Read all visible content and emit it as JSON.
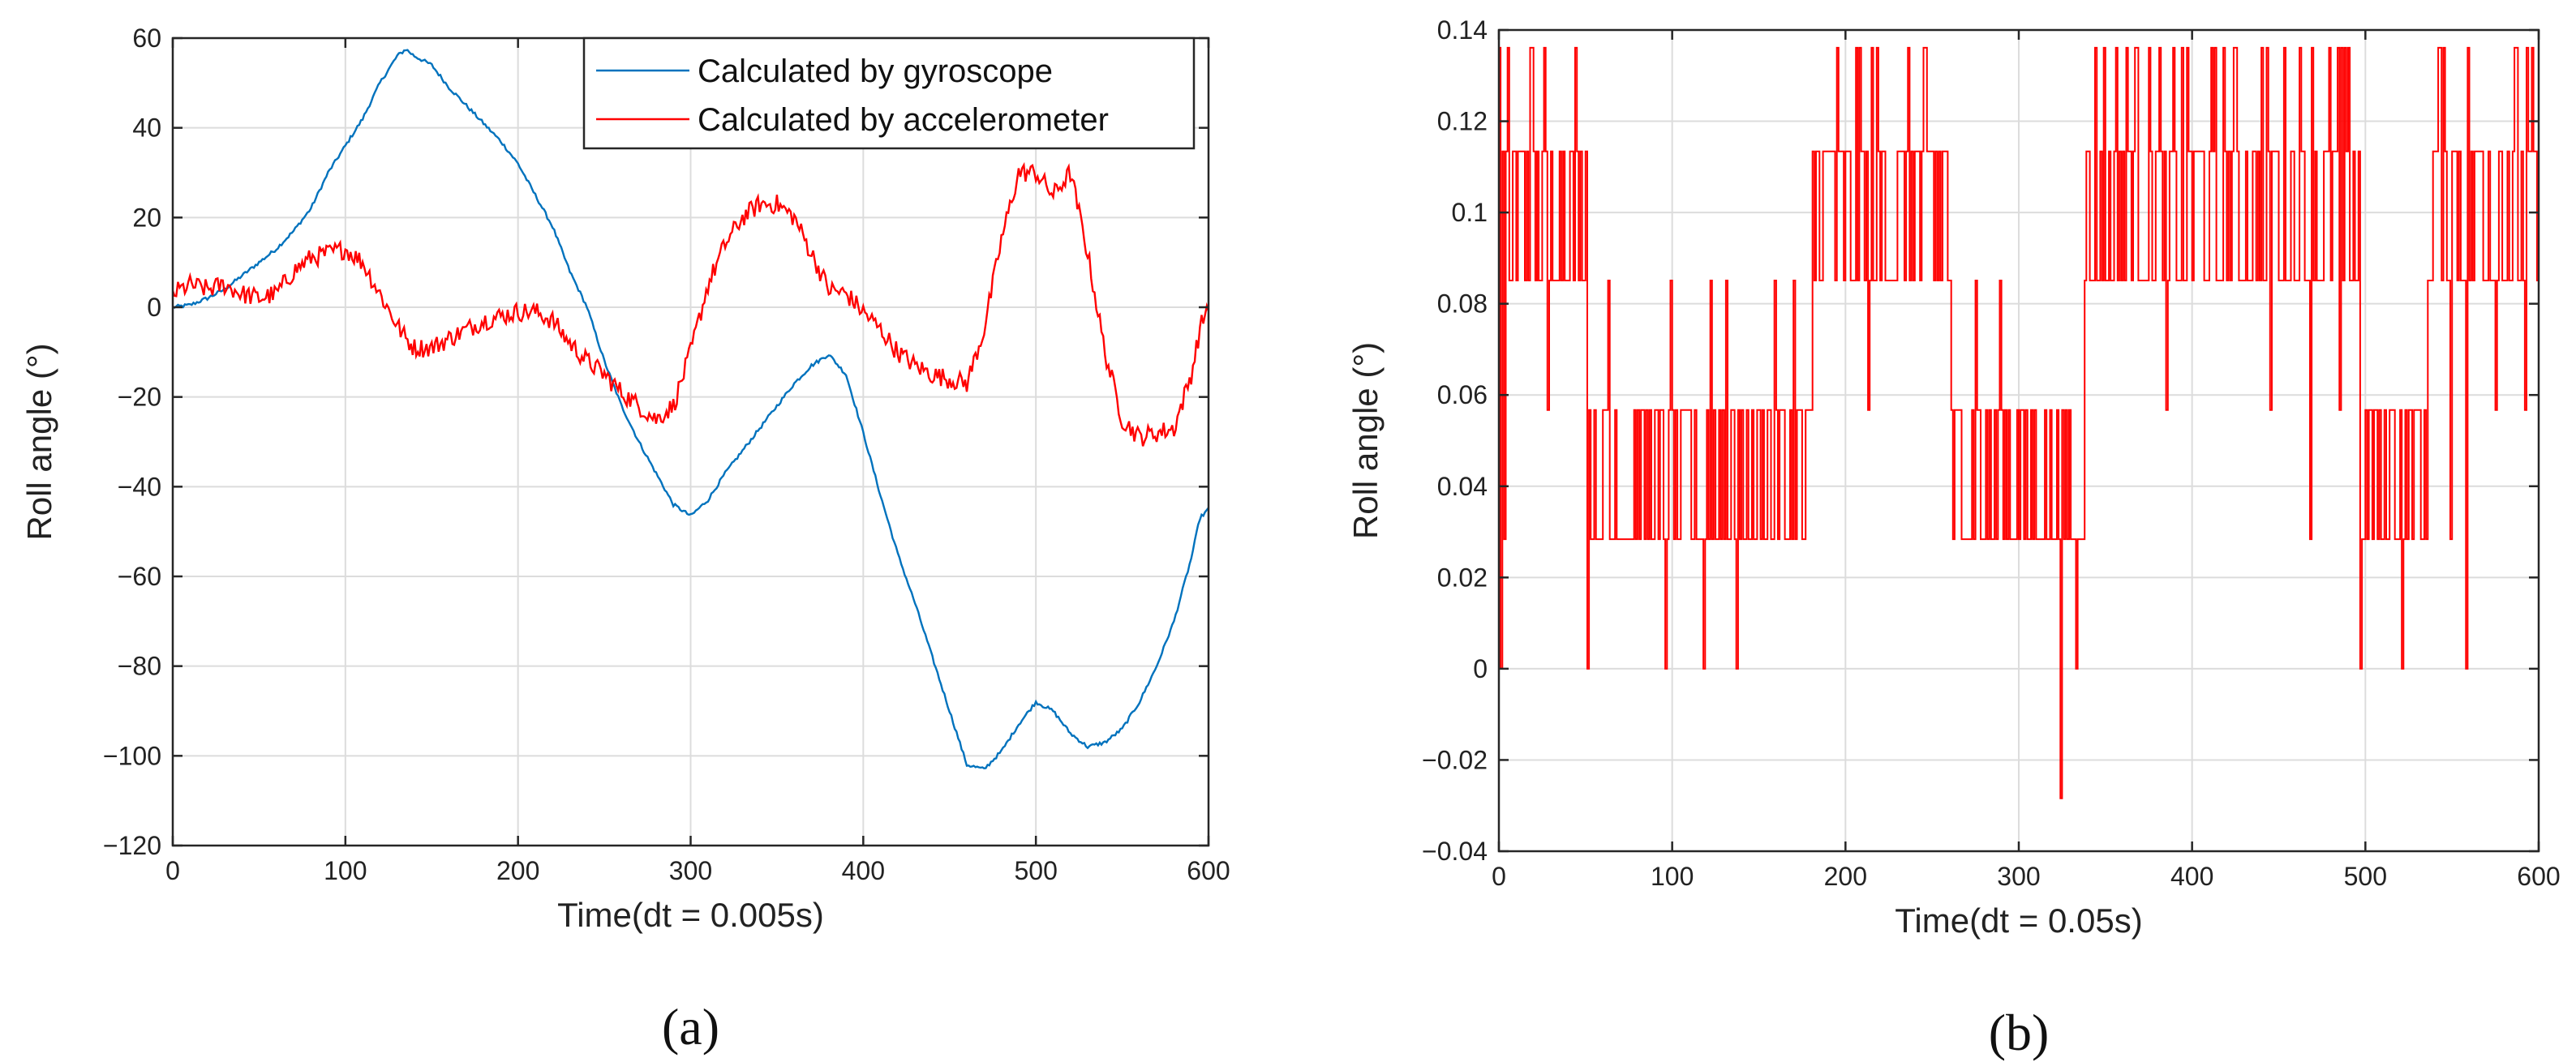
{
  "chart_data": [
    {
      "type": "line",
      "panel_label": "(a)",
      "xlabel": "Time(dt = 0.005s)",
      "ylabel": "Roll angle (°)",
      "xlim": [
        0,
        600
      ],
      "ylim": [
        -120,
        60
      ],
      "xticks": [
        0,
        100,
        200,
        300,
        400,
        500,
        600
      ],
      "yticks": [
        60,
        40,
        20,
        0,
        -20,
        -40,
        -60,
        -80,
        -100,
        -120
      ],
      "ytick_labels": [
        "60",
        "40",
        "20",
        "0",
        "−20",
        "−40",
        "−60",
        "−80",
        "−100",
        "−120"
      ],
      "grid": true,
      "legend": {
        "placement": "top-right"
      },
      "series": [
        {
          "name": "Calculated by gyroscope",
          "color": "#0072BD",
          "noise": 0.4,
          "x": [
            0,
            10,
            20,
            30,
            40,
            50,
            60,
            70,
            80,
            90,
            100,
            110,
            120,
            130,
            135,
            140,
            150,
            160,
            170,
            180,
            190,
            200,
            210,
            220,
            230,
            240,
            250,
            260,
            270,
            280,
            290,
            300,
            310,
            320,
            330,
            340,
            350,
            360,
            370,
            380,
            390,
            400,
            410,
            420,
            430,
            440,
            450,
            460,
            470,
            480,
            490,
            500,
            510,
            520,
            530,
            540,
            550,
            560,
            570,
            580,
            590,
            595,
            600
          ],
          "y": [
            0,
            0.5,
            2,
            4,
            7,
            10,
            13,
            17,
            22,
            30,
            36,
            42,
            50,
            56,
            57.5,
            56,
            54,
            49,
            45,
            41,
            37,
            32,
            25,
            18,
            8,
            0,
            -12,
            -22,
            -30,
            -37,
            -44,
            -46.5,
            -43,
            -37,
            -32,
            -27,
            -22,
            -17,
            -13,
            -10.5,
            -15,
            -28,
            -42,
            -55,
            -66,
            -78,
            -90,
            -102,
            -103,
            -99,
            -93,
            -88,
            -90,
            -95,
            -98,
            -97,
            -94,
            -88,
            -80,
            -70,
            -56,
            -47,
            -45
          ]
        },
        {
          "name": "Calculated by accelerometer",
          "color": "#FF0000",
          "noise": 2.2,
          "x": [
            0,
            10,
            20,
            30,
            40,
            50,
            60,
            70,
            80,
            90,
            100,
            110,
            120,
            130,
            135,
            140,
            150,
            160,
            170,
            180,
            190,
            200,
            210,
            220,
            230,
            240,
            250,
            260,
            270,
            280,
            290,
            300,
            310,
            320,
            330,
            340,
            350,
            360,
            370,
            380,
            390,
            400,
            410,
            420,
            430,
            440,
            450,
            460,
            470,
            480,
            490,
            500,
            510,
            520,
            530,
            540,
            550,
            560,
            570,
            580,
            590,
            595,
            600
          ],
          "y": [
            3,
            5,
            4,
            5,
            3,
            2,
            3,
            8,
            11,
            12,
            13,
            10,
            3,
            -4,
            -7,
            -9,
            -9,
            -7,
            -5,
            -3,
            -2,
            -1,
            -1,
            -3,
            -8,
            -12,
            -15,
            -19,
            -22,
            -25,
            -22,
            -10,
            5,
            14,
            20,
            23,
            23,
            20,
            12,
            4,
            3,
            -1,
            -5,
            -10,
            -13,
            -15,
            -16,
            -17,
            -5,
            15,
            30,
            30,
            25,
            30,
            12,
            -10,
            -25,
            -29,
            -28,
            -27,
            -15,
            -5,
            1
          ]
        }
      ]
    },
    {
      "type": "line",
      "panel_label": "(b)",
      "xlabel": "Time(dt = 0.05s)",
      "ylabel": "Roll angle (°)",
      "xlim": [
        0,
        600
      ],
      "ylim": [
        -0.04,
        0.14
      ],
      "xticks": [
        0,
        100,
        200,
        300,
        400,
        500,
        600
      ],
      "yticks": [
        0.14,
        0.12,
        0.1,
        0.08,
        0.06,
        0.04,
        0.02,
        0,
        -0.02,
        -0.04
      ],
      "ytick_labels": [
        "0.14",
        "0.12",
        "0.1",
        "0.08",
        "0.06",
        "0.04",
        "0.02",
        "0",
        "−0.02",
        "−0.04"
      ],
      "grid": true,
      "series": [
        {
          "color": "#FF0000",
          "levels": [
            0.0284,
            0.0567,
            0.0851,
            0.1134,
            0.1361
          ],
          "segments": [
            {
              "x": [
                0,
                50
              ],
              "high": true
            },
            {
              "x": [
                50,
                180
              ],
              "high": false
            },
            {
              "x": [
                180,
                260
              ],
              "high": true
            },
            {
              "x": [
                260,
                337
              ],
              "high": false
            },
            {
              "x": [
                337,
                497
              ],
              "high": true
            },
            {
              "x": [
                497,
                535
              ],
              "high": false
            },
            {
              "x": [
                535,
                600
              ],
              "high": true
            }
          ],
          "spikes": [
            {
              "x": 1,
              "y": 0
            },
            {
              "x": 3,
              "y": 0.0284
            },
            {
              "x": 28,
              "y": 0.0567
            },
            {
              "x": 51,
              "y": 0
            },
            {
              "x": 63,
              "y": 0.0851
            },
            {
              "x": 96,
              "y": 0
            },
            {
              "x": 99,
              "y": 0.0851
            },
            {
              "x": 118,
              "y": 0
            },
            {
              "x": 122,
              "y": 0.0851
            },
            {
              "x": 131,
              "y": 0.0851
            },
            {
              "x": 137,
              "y": 0
            },
            {
              "x": 159,
              "y": 0.0851
            },
            {
              "x": 170,
              "y": 0.0851
            },
            {
              "x": 213,
              "y": 0.0567
            },
            {
              "x": 264,
              "y": 0.0567
            },
            {
              "x": 275,
              "y": 0.0851
            },
            {
              "x": 289,
              "y": 0.0851
            },
            {
              "x": 324,
              "y": -0.0284
            },
            {
              "x": 333,
              "y": 0
            },
            {
              "x": 385,
              "y": 0.0567
            },
            {
              "x": 445,
              "y": 0.0567
            },
            {
              "x": 468,
              "y": 0.0284
            },
            {
              "x": 485,
              "y": 0.0567
            },
            {
              "x": 497,
              "y": 0
            },
            {
              "x": 521,
              "y": 0
            },
            {
              "x": 549,
              "y": 0.0284
            },
            {
              "x": 558,
              "y": 0
            },
            {
              "x": 575,
              "y": 0.0567
            },
            {
              "x": 592,
              "y": 0.0567
            }
          ]
        }
      ]
    }
  ]
}
